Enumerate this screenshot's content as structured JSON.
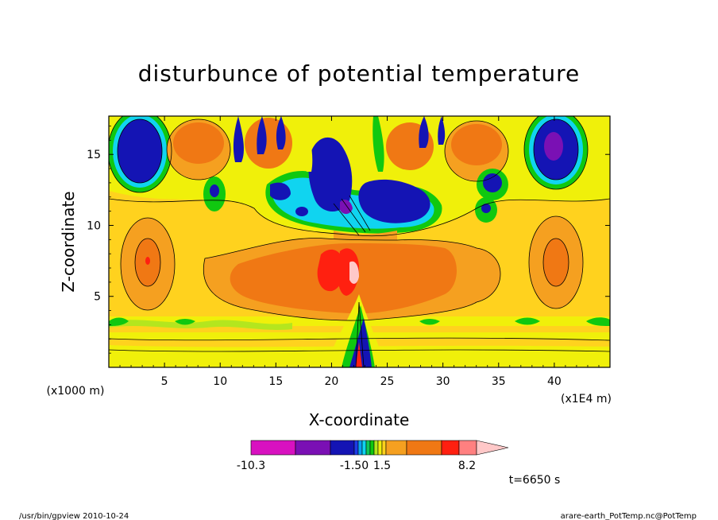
{
  "chart_data": {
    "type": "heatmap",
    "title": "disturbunce of potential temperature",
    "xlabel": "X-coordinate",
    "ylabel": "Z-coordinate",
    "x_unit": "(x1E4 m)",
    "y_unit": "(x1000 m)",
    "xlim": [
      0,
      45
    ],
    "ylim": [
      0,
      17.7
    ],
    "x_ticks": [
      5,
      10,
      15,
      20,
      25,
      30,
      35,
      40
    ],
    "x_tick_labels": [
      "5",
      "10",
      "15",
      "20",
      "25",
      "30",
      "35",
      "40"
    ],
    "y_ticks": [
      5,
      10,
      15
    ],
    "y_tick_labels": [
      "5",
      "10",
      "15"
    ],
    "grid": false,
    "colorbar": {
      "labels": [
        "-10.3",
        "-1.50",
        "1.5",
        "8.2"
      ],
      "colors": [
        "#d811c0",
        "#7a10b4",
        "#1414b4",
        "#1e3ce6",
        "#0aa0f0",
        "#10d4f0",
        "#10c858",
        "#10c810",
        "#b4e61e",
        "#f0f00a",
        "#ffd21e",
        "#f5a020",
        "#f07814",
        "#ff2010",
        "#ff8080",
        "#ffc8c8"
      ]
    },
    "time_label": "t=6650 s"
  },
  "footer": {
    "left": "/usr/bin/gpview   2010-10-24",
    "right": "arare-earth_PotTemp.nc@PotTemp"
  }
}
